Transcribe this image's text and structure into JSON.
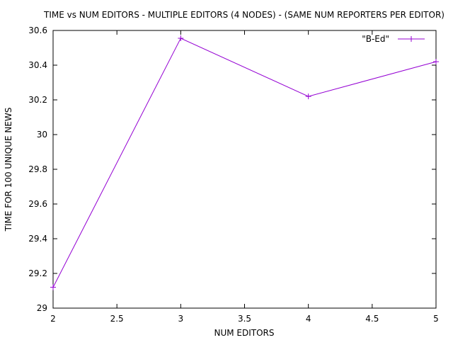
{
  "chart_data": {
    "type": "line",
    "title": "TIME vs NUM EDITORS - MULTIPLE EDITORS (4 NODES) - (SAME NUM REPORTERS PER EDITOR)",
    "xlabel": "NUM EDITORS",
    "ylabel": "TIME FOR 100 UNIQUE NEWS",
    "xlim": [
      2,
      5
    ],
    "ylim": [
      29,
      30.6
    ],
    "xticks": [
      "2",
      "2.5",
      "3",
      "3.5",
      "4",
      "4.5",
      "5"
    ],
    "yticks": [
      "29",
      "29.2",
      "29.4",
      "29.6",
      "29.8",
      "30",
      "30.2",
      "30.4",
      "30.6"
    ],
    "grid": false,
    "legend_position": "top-right",
    "series": [
      {
        "name": "\"B-Ed\"",
        "color": "#9400d3",
        "marker": "plus",
        "x": [
          2,
          3,
          4,
          5
        ],
        "y": [
          29.12,
          30.555,
          30.22,
          30.42
        ]
      }
    ]
  }
}
